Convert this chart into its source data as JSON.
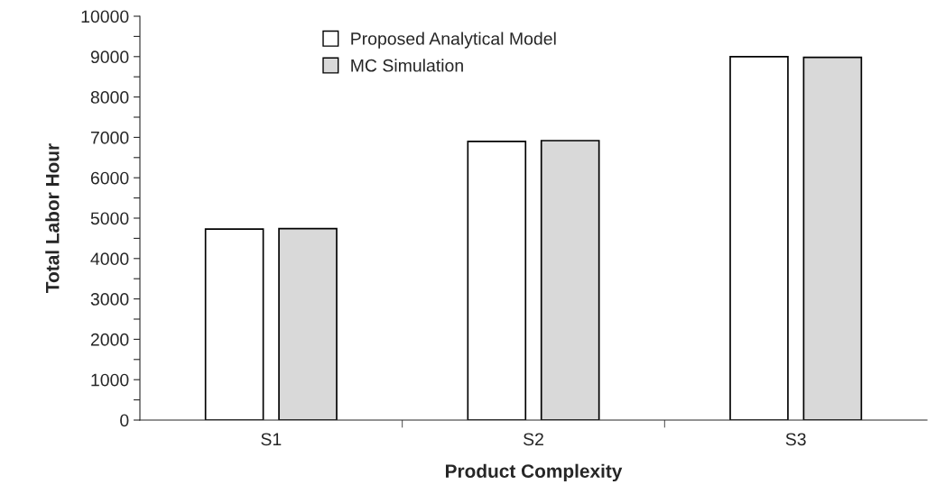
{
  "chart_data": {
    "type": "bar",
    "xlabel": "Product Complexity",
    "ylabel": "Total Labor Hour",
    "categories": [
      "S1",
      "S2",
      "S3"
    ],
    "series": [
      {
        "name": "Proposed Analytical Model",
        "color": "#ffffff",
        "values": [
          4730,
          6900,
          9000
        ]
      },
      {
        "name": "MC Simulation",
        "color": "#d9d9d9",
        "values": [
          4740,
          6920,
          8980
        ]
      }
    ],
    "ylim": [
      0,
      10000
    ],
    "yticks": [
      0,
      {
        "value": 500,
        "label": null
      },
      1000,
      {
        "value": 1500,
        "label": null
      },
      2000,
      {
        "value": 2500,
        "label": null
      },
      3000,
      {
        "value": 3500,
        "label": null
      },
      4000,
      {
        "value": 4500,
        "label": null
      },
      5000,
      {
        "value": 5500,
        "label": null
      },
      6000,
      {
        "value": 6500,
        "label": null
      },
      7000,
      {
        "value": 7500,
        "label": null
      },
      8000,
      {
        "value": 8500,
        "label": null
      },
      9000,
      {
        "value": 9500,
        "label": null
      },
      10000
    ],
    "grid": false,
    "legend": "top left"
  }
}
